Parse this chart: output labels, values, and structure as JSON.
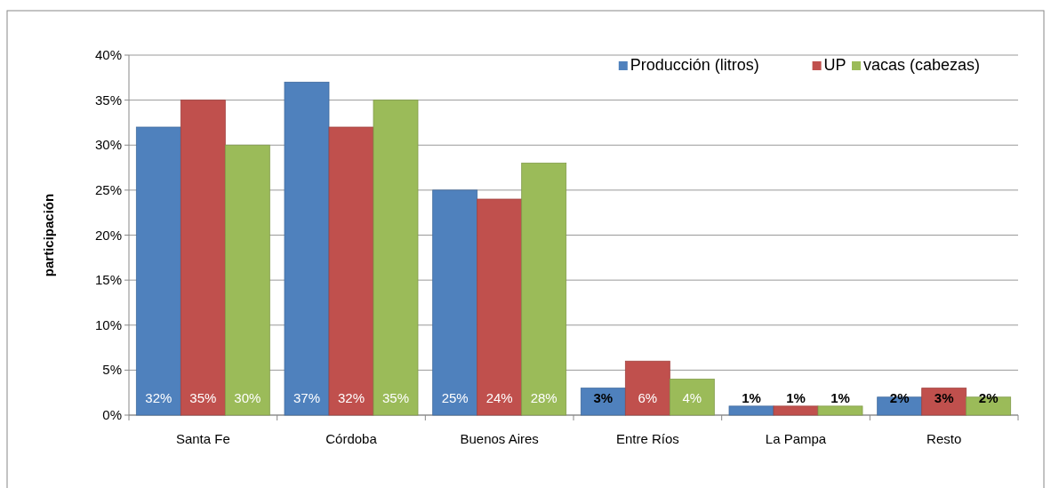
{
  "chart_data": {
    "type": "bar",
    "ylabel": "participación",
    "categories": [
      "Santa Fe",
      "Córdoba",
      "Buenos Aires",
      "Entre Ríos",
      "La Pampa",
      "Resto"
    ],
    "series": [
      {
        "name": "Producción (litros)",
        "color": "#4f81bd",
        "values": [
          32,
          37,
          25,
          3,
          1,
          2
        ],
        "value_labels": [
          "32%",
          "37%",
          "25%",
          "3%",
          "1%",
          "2%"
        ]
      },
      {
        "name": "UP",
        "color": "#c0504d",
        "values": [
          35,
          32,
          24,
          6,
          1,
          3
        ],
        "value_labels": [
          "35%",
          "32%",
          "24%",
          "6%",
          "1%",
          "3%"
        ]
      },
      {
        "name": "vacas (cabezas)",
        "color": "#9bbb59",
        "values": [
          30,
          35,
          28,
          4,
          1,
          2
        ],
        "value_labels": [
          "30%",
          "35%",
          "28%",
          "4%",
          "1%",
          "2%"
        ]
      }
    ],
    "ylim": [
      0,
      40
    ],
    "yticks": [
      {
        "value": 0,
        "label": "0%"
      },
      {
        "value": 5,
        "label": "5%"
      },
      {
        "value": 10,
        "label": "10%"
      },
      {
        "value": 15,
        "label": "15%"
      },
      {
        "value": 20,
        "label": "20%"
      },
      {
        "value": 25,
        "label": "25%"
      },
      {
        "value": 30,
        "label": "30%"
      },
      {
        "value": 35,
        "label": "35%"
      },
      {
        "value": 40,
        "label": "40%"
      }
    ],
    "grid": "y",
    "legend": "top right"
  }
}
